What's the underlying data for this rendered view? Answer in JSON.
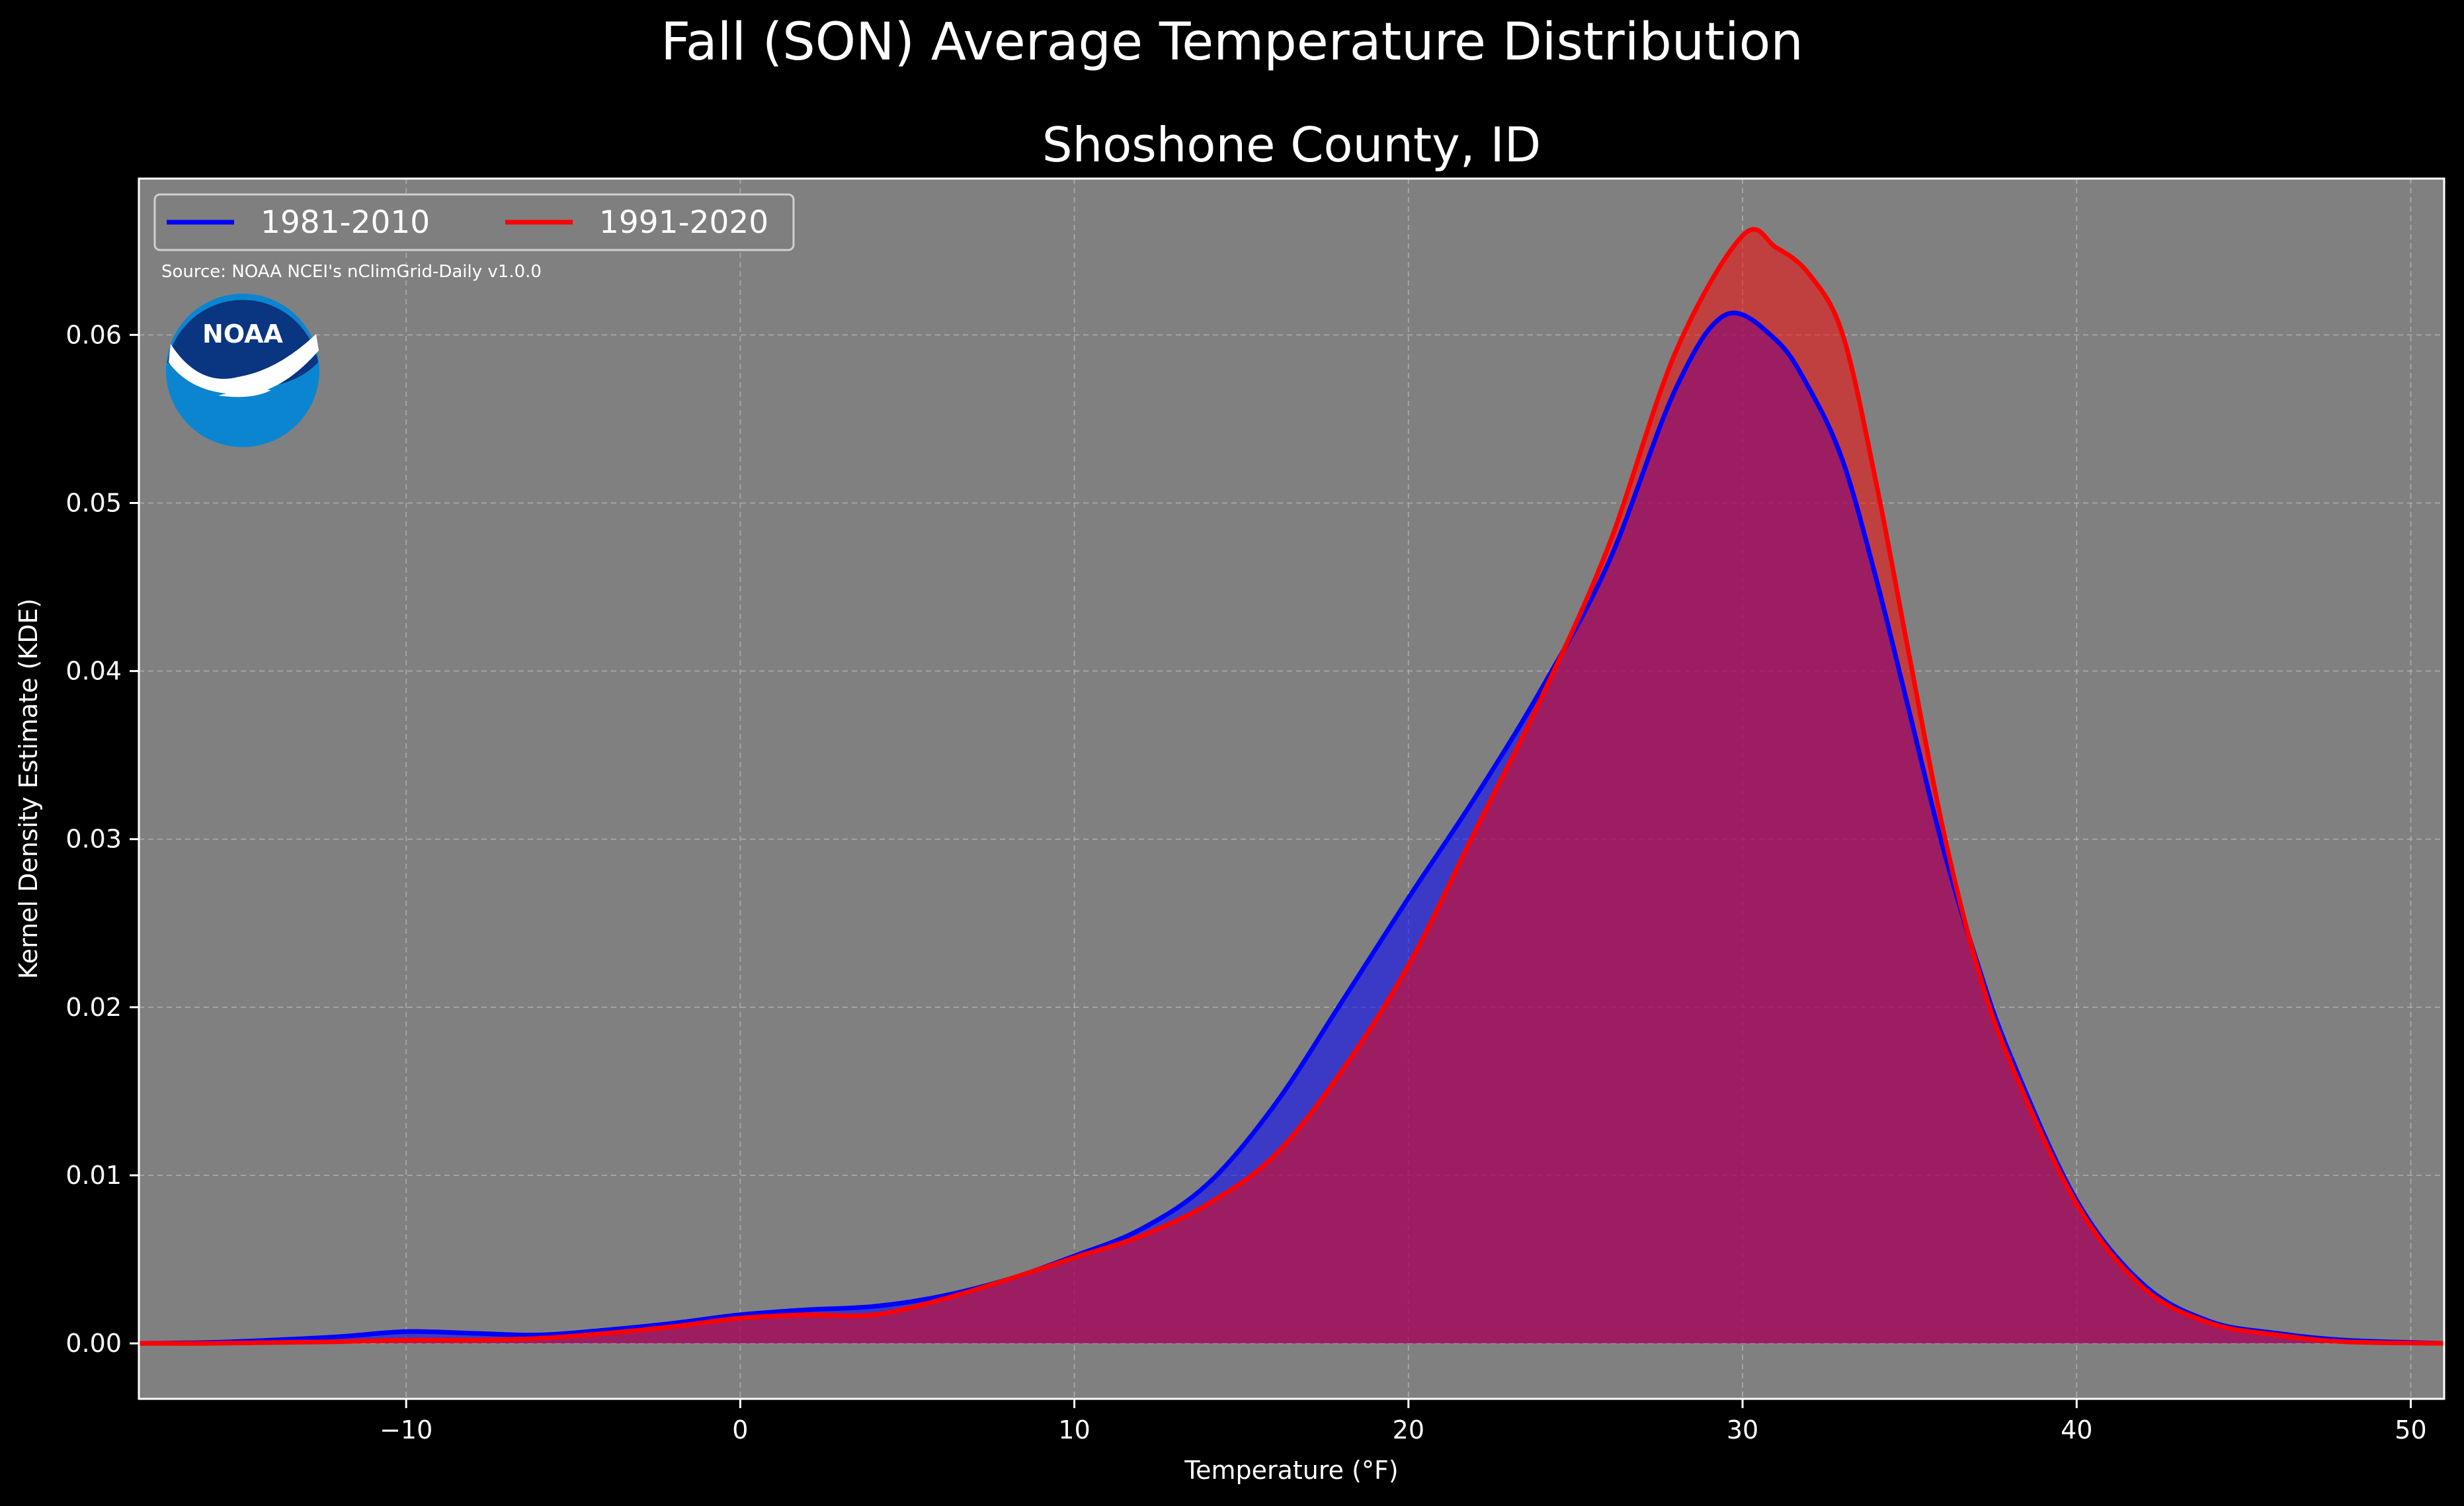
{
  "suptitle": "Fall (SON) Average Temperature Distribution",
  "source_note": "Source: NOAA NCEI's nClimGrid-Daily v1.0.0",
  "logo_text": "NOAA",
  "colors": {
    "background": "#000000",
    "plot_bg": "#808080",
    "grid": "#bdbdbd",
    "series_1": "#0000ff",
    "series_2": "#ff0000",
    "fill_overlap": "#9b1f5d",
    "logo_dark": "#0a3580",
    "logo_light": "#0b85d0"
  },
  "chart_data": {
    "type": "area",
    "title": "Shoshone County, ID",
    "xlabel": "Temperature (°F)",
    "ylabel": "Kernel Density Estimate (KDE)",
    "xlim": [
      -18,
      51
    ],
    "ylim": [
      -0.0033,
      0.0693
    ],
    "x_ticks": [
      -10,
      0,
      10,
      20,
      30,
      40,
      50
    ],
    "x_tick_labels": [
      "−10",
      "0",
      "10",
      "20",
      "30",
      "40",
      "50"
    ],
    "y_ticks": [
      0.0,
      0.01,
      0.02,
      0.03,
      0.04,
      0.05,
      0.06
    ],
    "y_tick_labels": [
      "0.00",
      "0.01",
      "0.02",
      "0.03",
      "0.04",
      "0.05",
      "0.06"
    ],
    "grid": true,
    "legend_position": "top-left",
    "series": [
      {
        "name": "1981-2010",
        "color": "#0000ff",
        "x": [
          -18,
          -16,
          -14,
          -12,
          -10,
          -8,
          -6,
          -4,
          -2,
          0,
          2,
          4,
          6,
          8,
          10,
          12,
          14,
          16,
          18,
          20,
          22,
          24,
          26,
          28,
          29.5,
          31,
          32,
          33,
          34,
          35,
          36,
          37,
          38,
          40,
          42,
          44,
          46,
          48,
          51
        ],
        "y": [
          0.0,
          5e-05,
          0.0002,
          0.0004,
          0.0007,
          0.0006,
          0.0005,
          0.0008,
          0.0012,
          0.0017,
          0.002,
          0.0022,
          0.0028,
          0.0038,
          0.0052,
          0.0068,
          0.0095,
          0.0142,
          0.0203,
          0.0265,
          0.0325,
          0.039,
          0.0465,
          0.0568,
          0.0612,
          0.0597,
          0.0568,
          0.0525,
          0.0455,
          0.0375,
          0.0295,
          0.0228,
          0.0172,
          0.0085,
          0.0035,
          0.0013,
          0.0006,
          0.0002,
          0.0
        ]
      },
      {
        "name": "1991-2020",
        "color": "#ff0000",
        "x": [
          -18,
          -16,
          -14,
          -12,
          -10,
          -8,
          -6,
          -4,
          -2,
          0,
          2,
          4,
          6,
          8,
          10,
          12,
          14,
          16,
          18,
          20,
          22,
          24,
          26,
          28,
          30,
          31,
          32,
          33,
          34,
          35,
          36,
          37,
          38,
          40,
          42,
          44,
          46,
          48,
          51
        ],
        "y": [
          0.0,
          0.0,
          5e-05,
          0.0001,
          0.0002,
          0.0002,
          0.0003,
          0.0006,
          0.001,
          0.0015,
          0.0017,
          0.0017,
          0.0026,
          0.0038,
          0.0051,
          0.0064,
          0.0083,
          0.0112,
          0.0162,
          0.0225,
          0.0305,
          0.0385,
          0.0475,
          0.059,
          0.0659,
          0.0652,
          0.0636,
          0.06,
          0.0512,
          0.0408,
          0.0306,
          0.0226,
          0.0168,
          0.0083,
          0.0033,
          0.0012,
          0.0005,
          0.0001,
          0.0
        ]
      }
    ]
  }
}
